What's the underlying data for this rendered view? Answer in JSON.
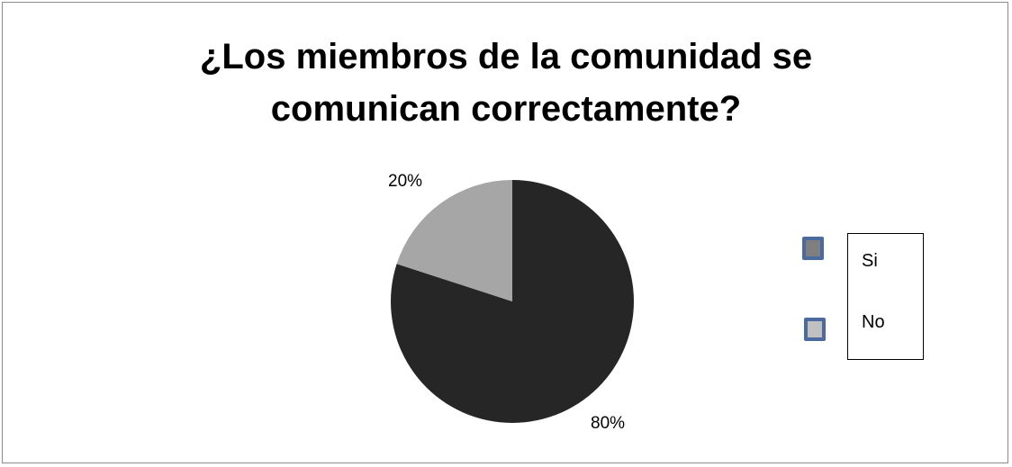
{
  "chart_data": {
    "type": "pie",
    "title": "¿Los miembros de la comunidad se comunican correctamente?",
    "title_lines": [
      "¿Los miembros de la comunidad se",
      "comunican correctamente?"
    ],
    "series": [
      {
        "name": "Si",
        "value": 80,
        "label": "80%",
        "color": "#262626",
        "legend_color": "#7f7f7f"
      },
      {
        "name": "No",
        "value": 20,
        "label": "20%",
        "color": "#a6a6a6",
        "legend_color": "#c0c0c0"
      }
    ],
    "legend": {
      "placement": "right",
      "items": [
        "Si",
        "No"
      ]
    }
  }
}
